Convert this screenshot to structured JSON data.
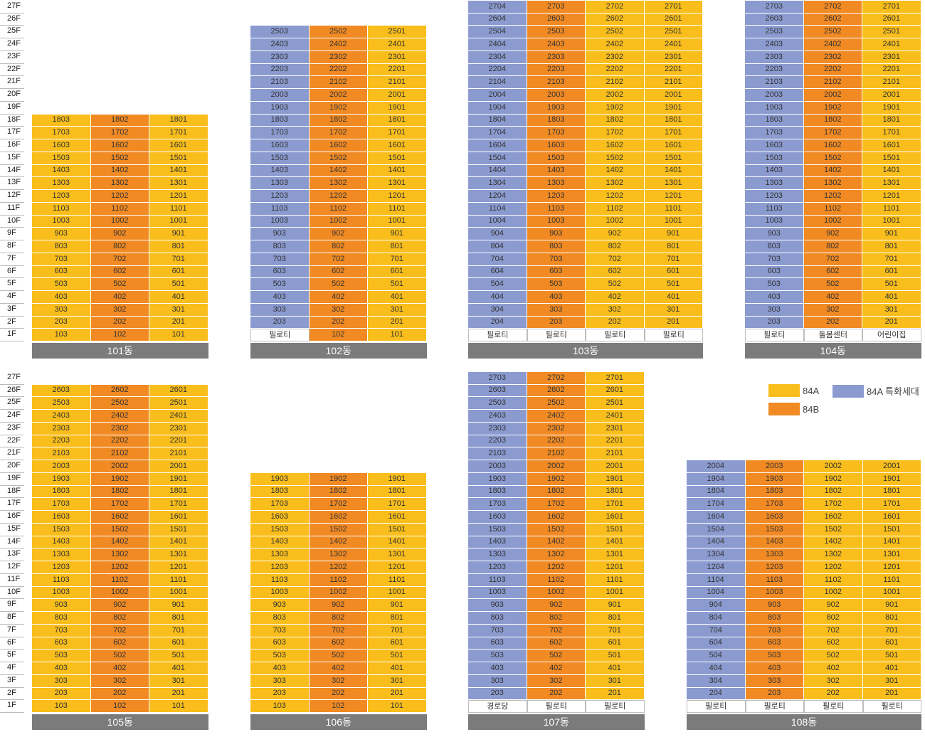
{
  "floor_axis_labels": [
    "27F",
    "26F",
    "25F",
    "24F",
    "23F",
    "22F",
    "21F",
    "20F",
    "19F",
    "18F",
    "17F",
    "16F",
    "15F",
    "14F",
    "13F",
    "12F",
    "11F",
    "10F",
    "9F",
    "8F",
    "7F",
    "6F",
    "5F",
    "4F",
    "3F",
    "2F",
    "1F"
  ],
  "colors": {
    "84A": "#F9BE1B",
    "84B": "#F18A23",
    "84A_special": "#8B9BD0",
    "building_label_bg": "#7b7b7b"
  },
  "legend": [
    {
      "key": "84A",
      "label": "84A"
    },
    {
      "key": "S",
      "label": "84A 특화세대"
    },
    {
      "key": "84B",
      "label": "84B"
    }
  ],
  "buildings": [
    {
      "name": "101동",
      "top_floor": 18,
      "has_ground_units": true,
      "unit_types": [
        [
          "84A",
          "84B",
          "84A"
        ]
      ]
    },
    {
      "name": "102동",
      "top_floor": 25,
      "ground": [
        "필로티",
        "102",
        "101"
      ],
      "unit_types": [
        [
          "S",
          "84B",
          "84A"
        ]
      ]
    },
    {
      "name": "103동",
      "top_floor": 27,
      "ground": [
        "필로티",
        "필로티",
        "필로티",
        "필로티"
      ],
      "unit_types": [
        [
          "S",
          "84B",
          "84A",
          "84A"
        ]
      ]
    },
    {
      "name": "104동",
      "top_floor": 27,
      "ground": [
        "필로티",
        "돌봄센터",
        "어린이집"
      ],
      "unit_types": [
        [
          "S",
          "84B",
          "84A"
        ]
      ]
    },
    {
      "name": "105동",
      "top_floor": 26,
      "has_ground_units": true,
      "unit_types": [
        [
          "84A",
          "84B",
          "84A"
        ]
      ]
    },
    {
      "name": "106동",
      "top_floor": 19,
      "has_ground_units": true,
      "unit_types": [
        [
          "84A",
          "84B",
          "84A"
        ]
      ]
    },
    {
      "name": "107동",
      "top_floor": 27,
      "ground": [
        "경로당",
        "필로티",
        "필로티"
      ],
      "unit_types": [
        [
          "S",
          "84B",
          "84A"
        ]
      ]
    },
    {
      "name": "108동",
      "top_floor": 20,
      "ground": [
        "필로티",
        "필로티",
        "필로티",
        "필로티"
      ],
      "unit_types": [
        [
          "S",
          "84B",
          "84A",
          "84A"
        ]
      ]
    }
  ]
}
